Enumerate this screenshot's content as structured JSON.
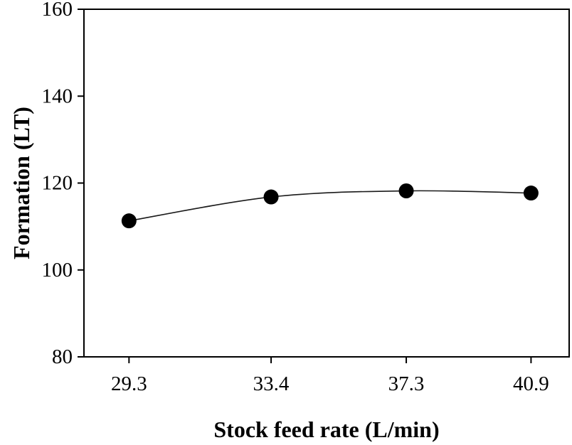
{
  "chart_data": {
    "type": "line",
    "title": "",
    "xlabel": "Stock feed rate (L/min)",
    "ylabel": "Formation (LT)",
    "x": [
      29.3,
      33.4,
      37.3,
      40.9
    ],
    "series": [
      {
        "name": "Formation",
        "values": [
          111.3,
          116.8,
          118.2,
          117.7
        ]
      }
    ],
    "xlim": [
      28,
      42
    ],
    "ylim": [
      80,
      160
    ],
    "xticks": [
      29.3,
      33.4,
      37.3,
      40.9
    ],
    "xtick_labels": [
      "29.3",
      "33.4",
      "37.3",
      "40.9"
    ],
    "yticks": [
      80,
      100,
      120,
      140,
      160
    ],
    "ytick_labels": [
      "80",
      "100",
      "120",
      "140",
      "160"
    ],
    "grid": false,
    "legend": false,
    "smooth": true,
    "marker": "filled-circle",
    "marker_radius": 10.5,
    "colors": {
      "frame": "#000000",
      "line": "#1a1a1a",
      "marker": "#000000",
      "text": "#000000",
      "background": "#ffffff"
    }
  }
}
